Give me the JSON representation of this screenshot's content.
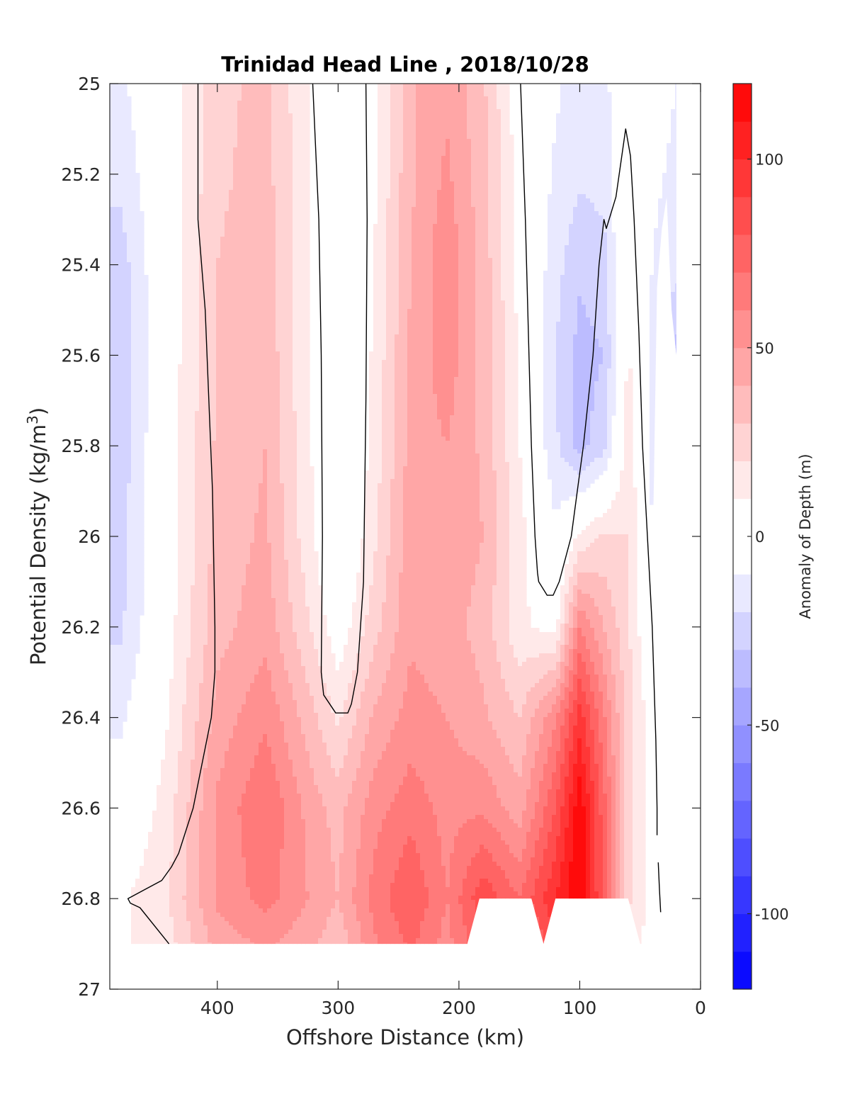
{
  "chart_data": {
    "type": "contour",
    "title": "Trinidad Head Line , 2018/10/28",
    "xlabel": "Offshore Distance (km)",
    "ylabel_main": "Potential Density (kg/m",
    "ylabel_sup": "3",
    "ylabel_end": ")",
    "xlim": [
      489,
      0
    ],
    "ylim": [
      25,
      27
    ],
    "x_reversed": true,
    "y_reversed": true,
    "x_ticks": [
      400,
      300,
      200,
      100,
      0
    ],
    "y_ticks": [
      25,
      25.2,
      25.4,
      25.6,
      25.8,
      26,
      26.2,
      26.4,
      26.6,
      26.8,
      27
    ],
    "y_tick_labels": [
      "25",
      "25.2",
      "25.4",
      "25.6",
      "25.8",
      "26",
      "26.2",
      "26.4",
      "26.6",
      "26.8",
      "27"
    ],
    "colorbar": {
      "label": "Anomaly of Depth (m)",
      "range": [
        -120,
        120
      ],
      "step": 10,
      "ticks": [
        100,
        50,
        0,
        -50,
        -100
      ],
      "tick_labels": [
        "100",
        "50",
        "0",
        "-50",
        "-100"
      ]
    },
    "zero_contour_label": "0",
    "field": {
      "x": [
        480,
        440,
        400,
        360,
        320,
        300,
        270,
        240,
        210,
        180,
        150,
        120,
        100,
        80,
        60,
        40,
        20
      ],
      "y": [
        25,
        25.2,
        25.4,
        25.6,
        25.8,
        26,
        26.2,
        26.4,
        26.6,
        26.8,
        26.9
      ],
      "values": [
        [
          -12,
          3,
          28,
          32,
          8,
          -6,
          8,
          38,
          48,
          32,
          3,
          -8,
          -15,
          -14,
          5,
          -6,
          -10
        ],
        [
          -17,
          3,
          28,
          34,
          8,
          -8,
          8,
          38,
          52,
          34,
          4,
          -12,
          -18,
          -16,
          6,
          -8,
          -12
        ],
        [
          -25,
          4,
          30,
          36,
          6,
          -10,
          10,
          40,
          58,
          36,
          6,
          -16,
          -28,
          -24,
          8,
          -10,
          -16
        ],
        [
          -28,
          4,
          30,
          38,
          6,
          -10,
          12,
          42,
          56,
          36,
          8,
          -20,
          -34,
          -30,
          12,
          -14,
          -34
        ],
        [
          -26,
          5,
          32,
          40,
          8,
          -10,
          14,
          44,
          50,
          38,
          10,
          -18,
          -34,
          -24,
          16,
          -12,
          -22
        ],
        [
          -24,
          5,
          34,
          42,
          10,
          -8,
          18,
          46,
          48,
          40,
          14,
          -8,
          12,
          22,
          20,
          -10,
          -18
        ],
        [
          -22,
          6,
          36,
          46,
          18,
          2,
          26,
          48,
          44,
          36,
          12,
          6,
          60,
          40,
          22,
          -6,
          -10
        ],
        [
          -12,
          10,
          44,
          58,
          32,
          18,
          42,
          54,
          50,
          42,
          30,
          58,
          95,
          62,
          24,
          4,
          6
        ],
        [
          -4,
          16,
          52,
          70,
          44,
          36,
          56,
          66,
          56,
          58,
          44,
          80,
          118,
          74,
          24,
          6,
          10
        ],
        [
          8,
          20,
          52,
          64,
          48,
          40,
          64,
          80,
          60,
          88,
          70,
          100,
          122,
          76,
          22,
          6,
          8
        ],
        [
          8,
          16,
          44,
          52,
          42,
          32,
          58,
          72,
          56,
          80,
          60,
          88,
          100,
          60,
          16,
          4,
          6
        ]
      ]
    },
    "data_extent": {
      "x": [
        480,
        489,
        470,
        455,
        440,
        430,
        410,
        390,
        360,
        330,
        300,
        270,
        240,
        210,
        190,
        180,
        155,
        140,
        130,
        120,
        110,
        60,
        50,
        40,
        30,
        20,
        20,
        25,
        27,
        40,
        60,
        80,
        150
      ],
      "y": [
        25,
        25,
        25,
        25,
        25,
        25,
        25,
        25,
        25,
        25,
        25,
        25,
        25,
        25,
        25,
        25,
        25,
        25,
        25,
        25,
        25,
        25,
        25,
        25,
        25,
        25,
        26.9,
        26.9,
        26.9,
        26.9,
        26.9,
        26.9,
        26.9
      ]
    },
    "missing_region": {
      "x": [
        193,
        183,
        140,
        130,
        120,
        60,
        50
      ],
      "y": [
        26.9,
        26.8,
        26.8,
        26.9,
        26.8,
        26.8,
        26.9
      ]
    },
    "coverage_boundary": {
      "x": [
        489,
        442,
        432,
        412,
        392,
        372,
        352,
        332,
        312,
        292,
        272,
        252,
        232,
        212,
        193,
        183,
        140,
        130,
        120,
        60,
        50,
        40,
        40,
        36,
        32,
        28,
        24,
        20,
        20
      ],
      "y": [
        26.9,
        26.9,
        26.9,
        26.9,
        26.9,
        26.9,
        26.9,
        26.9,
        26.9,
        26.9,
        26.9,
        26.9,
        26.9,
        26.9,
        26.9,
        26.8,
        26.8,
        26.9,
        26.8,
        26.8,
        26.9,
        26.9,
        26.1,
        25.45,
        25.32,
        25.25,
        25.5,
        25.6,
        26.36
      ]
    },
    "zero_contours": [
      {
        "x": [
          416,
          416,
          410,
          404,
          402,
          402,
          405,
          420,
          432,
          438,
          446,
          460,
          474,
          472,
          464,
          440
        ],
        "y": [
          25,
          25.3,
          25.5,
          25.9,
          26.2,
          26.3,
          26.4,
          26.6,
          26.7,
          26.73,
          26.76,
          26.78,
          26.8,
          26.81,
          26.82,
          26.9
        ]
      },
      {
        "x": [
          321,
          316,
          314,
          313,
          314,
          312,
          302,
          292,
          289,
          284,
          279,
          277,
          276,
          277
        ],
        "y": [
          25,
          25.3,
          25.6,
          26.0,
          26.3,
          26.35,
          26.39,
          26.39,
          26.37,
          26.3,
          26.1,
          25.7,
          25.3,
          25.0
        ]
      },
      {
        "x": [
          149,
          145,
          143,
          140,
          137,
          135,
          134,
          127,
          122,
          117,
          107,
          102,
          97,
          89,
          84,
          80,
          78,
          70,
          62,
          58,
          55,
          51,
          48,
          44,
          40,
          37,
          36,
          36
        ],
        "y": [
          25.0,
          25.3,
          25.5,
          25.8,
          26.0,
          26.08,
          26.1,
          26.13,
          26.13,
          26.1,
          26.0,
          25.9,
          25.8,
          25.6,
          25.4,
          25.3,
          25.32,
          25.25,
          25.1,
          25.16,
          25.3,
          25.55,
          25.8,
          26.0,
          26.2,
          26.45,
          26.6,
          26.66
        ]
      },
      {
        "x": [
          33,
          34,
          35
        ],
        "y": [
          26.83,
          26.78,
          26.72
        ]
      }
    ]
  }
}
